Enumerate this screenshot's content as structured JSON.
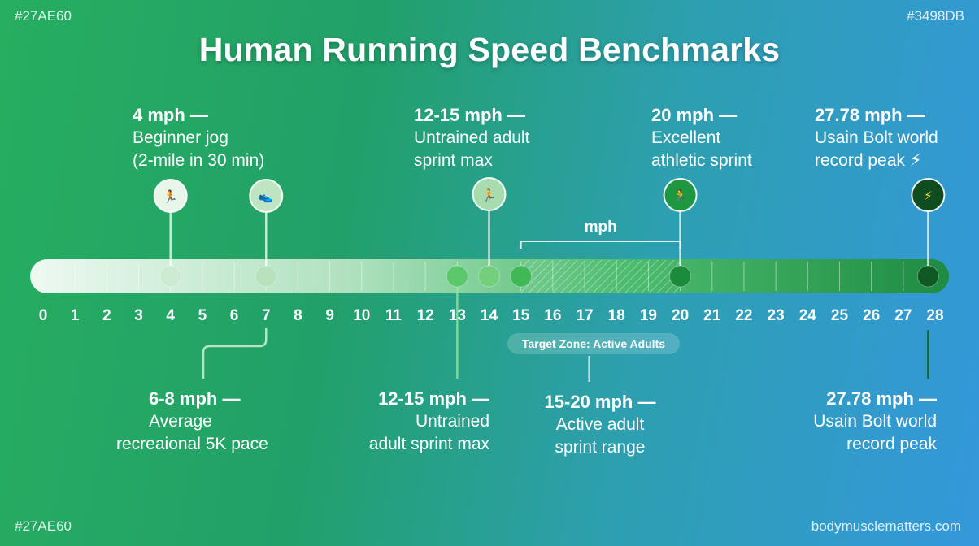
{
  "corners": {
    "top_left": "#27AE60",
    "top_right": "#3498DB",
    "bottom_left": "#27AE60",
    "bottom_right": "bodymusclematters.com"
  },
  "title": "Human Running Speed Benchmarks",
  "colors": {
    "start": "#27AE60",
    "end": "#3498DB"
  },
  "axis": {
    "min": 0,
    "max": 28,
    "ticks": [
      0,
      1,
      2,
      3,
      4,
      5,
      6,
      7,
      8,
      9,
      10,
      11,
      12,
      13,
      14,
      15,
      16,
      17,
      18,
      19,
      20,
      21,
      22,
      23,
      24,
      25,
      26,
      27,
      28
    ]
  },
  "range_bracket": {
    "label": "mph",
    "from": 15,
    "to": 20
  },
  "target_zone": {
    "label": "Target Zone: Active Adults",
    "from": 15,
    "to": 20
  },
  "top_markers": [
    {
      "value": 4,
      "heading": "4 mph —",
      "lines": [
        "Beginner jog",
        "(2-mile in 30 min)"
      ],
      "icon": "runner-icon",
      "glyph": "🏃"
    },
    {
      "value": 7,
      "heading": "",
      "lines": [],
      "icon": "shoe-icon",
      "glyph": "👟"
    },
    {
      "value": 14,
      "heading": "12-15 mph —",
      "lines": [
        "Untrained adult",
        "sprint max"
      ],
      "icon": "sprinter-icon",
      "glyph": "🏃"
    },
    {
      "value": 20,
      "heading": "20 mph —",
      "lines": [
        "Excellent",
        "athletic sprint"
      ],
      "icon": "athlete-icon",
      "glyph": "🏃"
    },
    {
      "value": 27.78,
      "heading": "27.78 mph —",
      "lines": [
        "Usain Bolt world",
        "record peak ⚡"
      ],
      "icon": "lightning-icon",
      "glyph": "⚡"
    }
  ],
  "bottom_markers": [
    {
      "value": 7,
      "heading": "6-8 mph —",
      "lines": [
        "Average",
        "recreaional 5K pace"
      ]
    },
    {
      "value": 13,
      "heading": "12-15 mph —",
      "lines": [
        "Untrained",
        "adult sprint max"
      ]
    },
    {
      "value": 17.5,
      "heading": "15-20 mph —",
      "lines": [
        "Active adult",
        "sprint range"
      ]
    },
    {
      "value": 27.78,
      "heading": "27.78 mph —",
      "lines": [
        "Usain Bolt world",
        "record peak"
      ]
    }
  ],
  "track_dots": [
    4,
    7,
    13,
    14,
    15,
    20,
    27.78
  ]
}
